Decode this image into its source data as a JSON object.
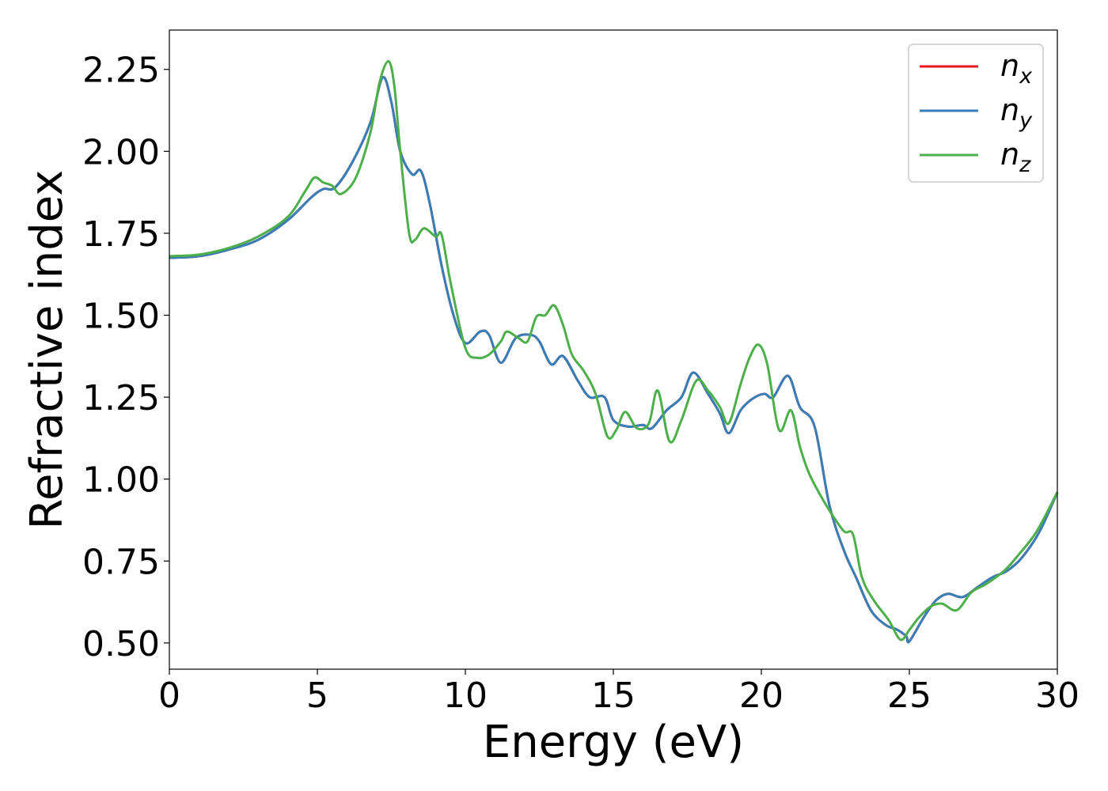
{
  "chart_data": {
    "type": "line",
    "xlabel": "Energy (eV)",
    "ylabel": "Refractive index",
    "xlim": [
      0,
      30
    ],
    "ylim": [
      0.42,
      2.37
    ],
    "xticks": [
      "0",
      "5",
      "10",
      "15",
      "20",
      "25",
      "30"
    ],
    "yticks": [
      "0.50",
      "0.75",
      "1.00",
      "1.25",
      "1.50",
      "1.75",
      "2.00",
      "2.25"
    ],
    "grid": false,
    "legend_position": "top-right",
    "series": [
      {
        "name": "n",
        "subscript": "x",
        "color": "#e41a1c",
        "points": [
          [
            0,
            1.675
          ],
          [
            1,
            1.68
          ],
          [
            2,
            1.7
          ],
          [
            3,
            1.73
          ],
          [
            4,
            1.79
          ],
          [
            4.8,
            1.86
          ],
          [
            5.2,
            1.885
          ],
          [
            5.6,
            1.89
          ],
          [
            6.2,
            1.97
          ],
          [
            6.8,
            2.09
          ],
          [
            7.2,
            2.225
          ],
          [
            7.5,
            2.15
          ],
          [
            7.8,
            2.0
          ],
          [
            8.2,
            1.93
          ],
          [
            8.5,
            1.94
          ],
          [
            8.8,
            1.84
          ],
          [
            9.2,
            1.65
          ],
          [
            9.6,
            1.5
          ],
          [
            10.0,
            1.415
          ],
          [
            10.5,
            1.45
          ],
          [
            10.8,
            1.44
          ],
          [
            11.2,
            1.355
          ],
          [
            11.7,
            1.43
          ],
          [
            12.2,
            1.44
          ],
          [
            12.5,
            1.42
          ],
          [
            12.9,
            1.35
          ],
          [
            13.3,
            1.375
          ],
          [
            13.8,
            1.3
          ],
          [
            14.2,
            1.25
          ],
          [
            14.7,
            1.25
          ],
          [
            15.0,
            1.18
          ],
          [
            15.5,
            1.16
          ],
          [
            16.0,
            1.165
          ],
          [
            16.3,
            1.155
          ],
          [
            16.8,
            1.21
          ],
          [
            17.3,
            1.25
          ],
          [
            17.7,
            1.325
          ],
          [
            18.2,
            1.26
          ],
          [
            18.6,
            1.2
          ],
          [
            18.9,
            1.14
          ],
          [
            19.3,
            1.21
          ],
          [
            19.7,
            1.245
          ],
          [
            20.1,
            1.26
          ],
          [
            20.4,
            1.25
          ],
          [
            20.9,
            1.315
          ],
          [
            21.3,
            1.22
          ],
          [
            21.8,
            1.16
          ],
          [
            22.3,
            0.92
          ],
          [
            22.8,
            0.78
          ],
          [
            23.2,
            0.7
          ],
          [
            23.7,
            0.6
          ],
          [
            24.2,
            0.555
          ],
          [
            24.6,
            0.54
          ],
          [
            24.9,
            0.52
          ],
          [
            25.0,
            0.505
          ],
          [
            25.5,
            0.58
          ],
          [
            25.9,
            0.63
          ],
          [
            26.3,
            0.65
          ],
          [
            26.8,
            0.64
          ],
          [
            27.3,
            0.67
          ],
          [
            27.8,
            0.7
          ],
          [
            28.3,
            0.72
          ],
          [
            28.8,
            0.76
          ],
          [
            29.4,
            0.84
          ],
          [
            30.0,
            0.96
          ]
        ]
      },
      {
        "name": "n",
        "subscript": "y",
        "color": "#377eb8",
        "points": [
          [
            0,
            1.675
          ],
          [
            1,
            1.68
          ],
          [
            2,
            1.7
          ],
          [
            3,
            1.73
          ],
          [
            4,
            1.79
          ],
          [
            4.8,
            1.86
          ],
          [
            5.2,
            1.885
          ],
          [
            5.6,
            1.89
          ],
          [
            6.2,
            1.97
          ],
          [
            6.8,
            2.09
          ],
          [
            7.2,
            2.225
          ],
          [
            7.5,
            2.15
          ],
          [
            7.8,
            2.0
          ],
          [
            8.2,
            1.93
          ],
          [
            8.5,
            1.94
          ],
          [
            8.8,
            1.84
          ],
          [
            9.2,
            1.65
          ],
          [
            9.6,
            1.5
          ],
          [
            10.0,
            1.415
          ],
          [
            10.5,
            1.45
          ],
          [
            10.8,
            1.44
          ],
          [
            11.2,
            1.355
          ],
          [
            11.7,
            1.43
          ],
          [
            12.2,
            1.44
          ],
          [
            12.5,
            1.42
          ],
          [
            12.9,
            1.35
          ],
          [
            13.3,
            1.375
          ],
          [
            13.8,
            1.3
          ],
          [
            14.2,
            1.25
          ],
          [
            14.7,
            1.25
          ],
          [
            15.0,
            1.18
          ],
          [
            15.5,
            1.16
          ],
          [
            16.0,
            1.165
          ],
          [
            16.3,
            1.155
          ],
          [
            16.8,
            1.21
          ],
          [
            17.3,
            1.25
          ],
          [
            17.7,
            1.325
          ],
          [
            18.2,
            1.26
          ],
          [
            18.6,
            1.2
          ],
          [
            18.9,
            1.14
          ],
          [
            19.3,
            1.21
          ],
          [
            19.7,
            1.245
          ],
          [
            20.1,
            1.26
          ],
          [
            20.4,
            1.25
          ],
          [
            20.9,
            1.315
          ],
          [
            21.3,
            1.22
          ],
          [
            21.8,
            1.16
          ],
          [
            22.3,
            0.92
          ],
          [
            22.8,
            0.78
          ],
          [
            23.2,
            0.7
          ],
          [
            23.7,
            0.6
          ],
          [
            24.2,
            0.555
          ],
          [
            24.6,
            0.54
          ],
          [
            24.9,
            0.52
          ],
          [
            25.0,
            0.505
          ],
          [
            25.5,
            0.58
          ],
          [
            25.9,
            0.63
          ],
          [
            26.3,
            0.65
          ],
          [
            26.8,
            0.64
          ],
          [
            27.3,
            0.67
          ],
          [
            27.8,
            0.7
          ],
          [
            28.3,
            0.72
          ],
          [
            28.8,
            0.76
          ],
          [
            29.4,
            0.84
          ],
          [
            30.0,
            0.96
          ]
        ]
      },
      {
        "name": "n",
        "subscript": "z",
        "color": "#4daf4a",
        "points": [
          [
            0,
            1.68
          ],
          [
            1,
            1.685
          ],
          [
            2,
            1.705
          ],
          [
            3,
            1.74
          ],
          [
            4,
            1.8
          ],
          [
            4.6,
            1.88
          ],
          [
            4.9,
            1.92
          ],
          [
            5.2,
            1.905
          ],
          [
            5.5,
            1.895
          ],
          [
            5.8,
            1.87
          ],
          [
            6.3,
            1.92
          ],
          [
            6.8,
            2.06
          ],
          [
            7.1,
            2.21
          ],
          [
            7.4,
            2.275
          ],
          [
            7.6,
            2.2
          ],
          [
            7.8,
            2.0
          ],
          [
            8.1,
            1.75
          ],
          [
            8.3,
            1.73
          ],
          [
            8.6,
            1.765
          ],
          [
            9.0,
            1.74
          ],
          [
            9.2,
            1.745
          ],
          [
            9.5,
            1.6
          ],
          [
            10.0,
            1.4
          ],
          [
            10.4,
            1.37
          ],
          [
            10.8,
            1.38
          ],
          [
            11.2,
            1.42
          ],
          [
            11.4,
            1.45
          ],
          [
            11.8,
            1.43
          ],
          [
            12.1,
            1.42
          ],
          [
            12.4,
            1.495
          ],
          [
            12.7,
            1.5
          ],
          [
            13.0,
            1.53
          ],
          [
            13.3,
            1.47
          ],
          [
            13.6,
            1.38
          ],
          [
            14.0,
            1.33
          ],
          [
            14.4,
            1.26
          ],
          [
            14.8,
            1.13
          ],
          [
            15.1,
            1.15
          ],
          [
            15.4,
            1.205
          ],
          [
            15.8,
            1.155
          ],
          [
            16.2,
            1.17
          ],
          [
            16.5,
            1.27
          ],
          [
            16.9,
            1.115
          ],
          [
            17.3,
            1.18
          ],
          [
            17.8,
            1.3
          ],
          [
            18.2,
            1.27
          ],
          [
            18.6,
            1.22
          ],
          [
            18.9,
            1.17
          ],
          [
            19.3,
            1.29
          ],
          [
            19.6,
            1.37
          ],
          [
            19.9,
            1.41
          ],
          [
            20.2,
            1.35
          ],
          [
            20.6,
            1.15
          ],
          [
            21.0,
            1.21
          ],
          [
            21.3,
            1.1
          ],
          [
            21.6,
            1.02
          ],
          [
            22.0,
            0.95
          ],
          [
            22.4,
            0.89
          ],
          [
            22.8,
            0.84
          ],
          [
            23.1,
            0.83
          ],
          [
            23.4,
            0.7
          ],
          [
            23.8,
            0.63
          ],
          [
            24.3,
            0.57
          ],
          [
            24.7,
            0.51
          ],
          [
            25.0,
            0.54
          ],
          [
            25.3,
            0.575
          ],
          [
            25.7,
            0.61
          ],
          [
            26.1,
            0.62
          ],
          [
            26.6,
            0.6
          ],
          [
            27.1,
            0.655
          ],
          [
            27.6,
            0.68
          ],
          [
            28.2,
            0.72
          ],
          [
            28.7,
            0.77
          ],
          [
            29.3,
            0.84
          ],
          [
            30.0,
            0.96
          ]
        ]
      }
    ]
  }
}
